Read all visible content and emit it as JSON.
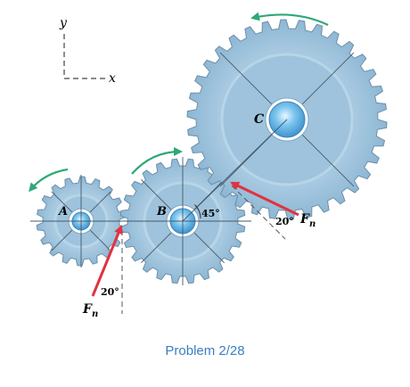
{
  "axes": {
    "y_label": "y",
    "x_label": "x"
  },
  "gears": {
    "A": {
      "label": "A"
    },
    "B": {
      "label": "B"
    },
    "C": {
      "label": "C"
    }
  },
  "angles": {
    "b_angle": "45°",
    "lower_force_angle": "20°",
    "upper_force_angle": "20°"
  },
  "forces": {
    "symbol": "F",
    "subscript": "n"
  },
  "caption": "Problem 2/28",
  "colors": {
    "gear_fill": "#aacbe2",
    "gear_stroke": "#6f8fa8",
    "hub_fill": "#5aaee0",
    "force_arrow": "#e2323f",
    "rotation_arrow": "#2fa877",
    "caption": "#3a7ec4"
  },
  "icons": {
    "rotation": "curved-arrow-icon",
    "force": "straight-arrow-icon"
  }
}
